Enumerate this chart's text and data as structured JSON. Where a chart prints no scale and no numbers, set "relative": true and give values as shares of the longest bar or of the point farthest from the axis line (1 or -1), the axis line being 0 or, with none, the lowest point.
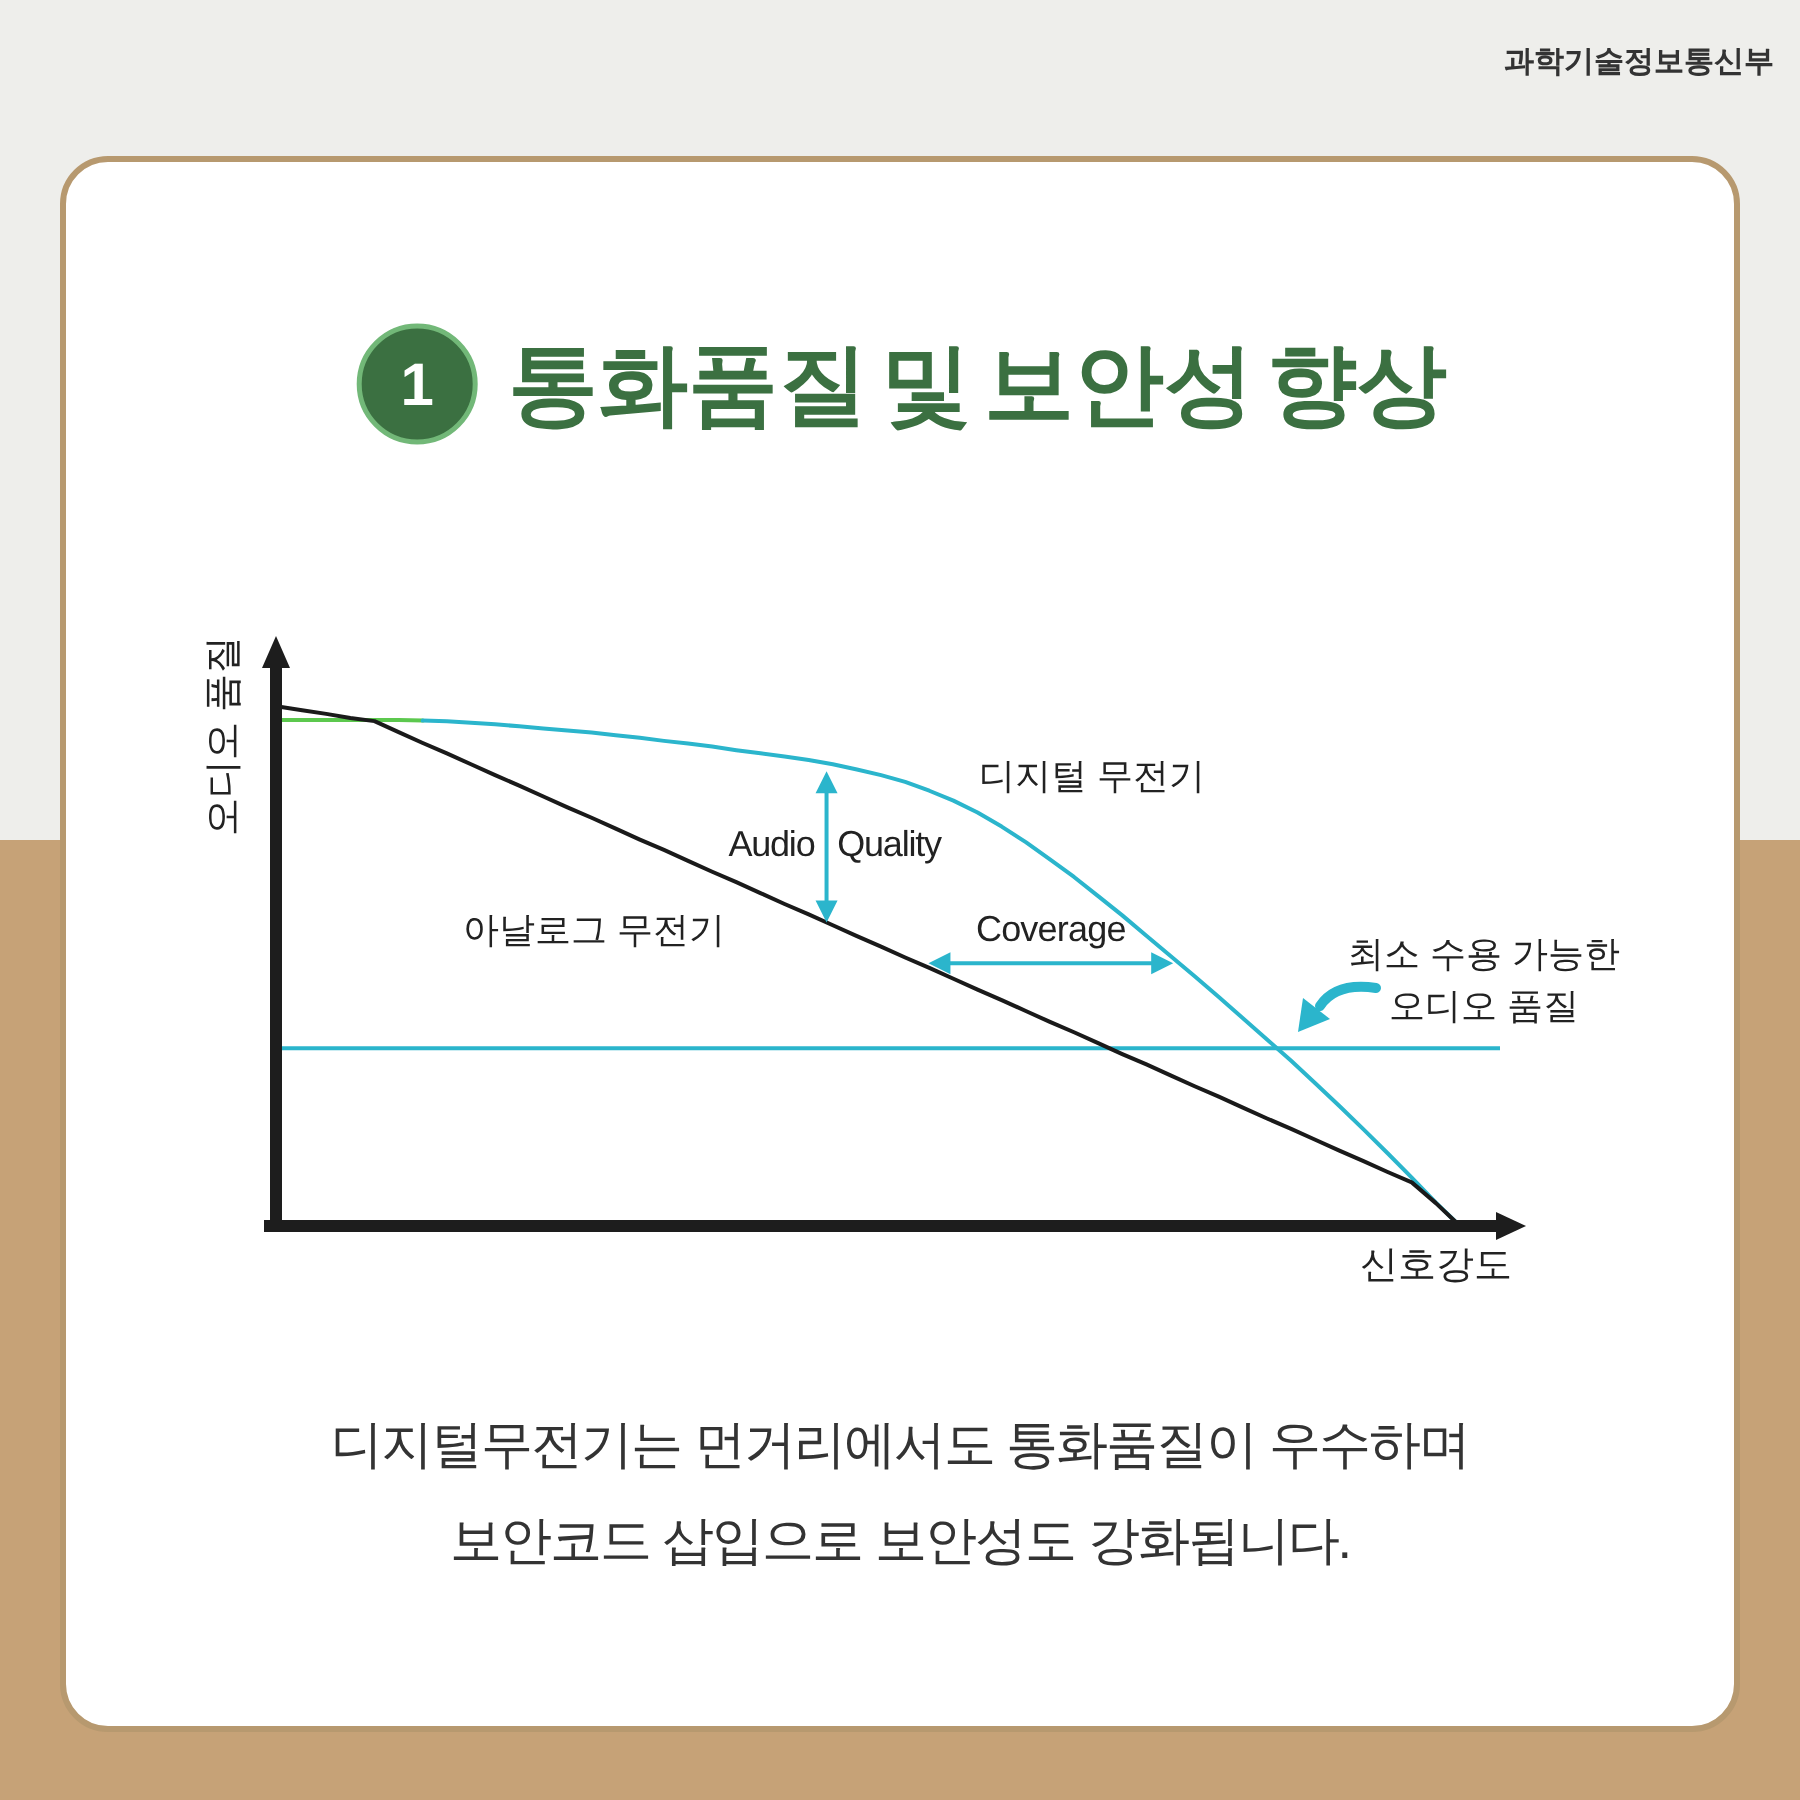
{
  "chart_data": {
    "type": "line",
    "relative": true,
    "title": "통화품질 및 보안성 향상",
    "xlabel": "신호강도",
    "ylabel": "오디오 품질",
    "categories": [
      null,
      null,
      null,
      null,
      null,
      null,
      null,
      null,
      null,
      null,
      null,
      null,
      null,
      null,
      null,
      null,
      null,
      null,
      null,
      null,
      null,
      null,
      null,
      null,
      null,
      null,
      null,
      null,
      null,
      null,
      null,
      null,
      null,
      null,
      null,
      null,
      null,
      null,
      null,
      null,
      null,
      null,
      null,
      null,
      null,
      null,
      null,
      null,
      null,
      null
    ],
    "series": [
      {
        "color": "#5cc84e",
        "values": [
          0.974,
          0.974,
          0.974,
          0.974,
          0.974,
          0.974,
          0.973,
          null,
          null,
          null,
          null,
          null,
          null,
          null,
          null,
          null,
          null,
          null,
          null,
          null,
          null,
          null,
          null,
          null,
          null,
          null,
          null,
          null,
          null,
          null,
          null,
          null,
          null,
          null,
          null,
          null,
          null,
          null,
          null,
          null,
          null,
          null,
          null,
          null,
          null,
          null,
          null,
          null,
          null,
          null
        ]
      },
      {
        "name": "디지털 무전기",
        "color": "#2bb5cc",
        "values": [
          null,
          null,
          null,
          null,
          null,
          null,
          0.973,
          0.972,
          0.969,
          0.966,
          0.962,
          0.958,
          0.954,
          0.95,
          0.945,
          0.94,
          0.934,
          0.929,
          0.923,
          0.916,
          0.91,
          0.904,
          0.897,
          0.889,
          0.879,
          0.868,
          0.855,
          0.838,
          0.819,
          0.796,
          0.769,
          0.739,
          0.706,
          0.672,
          0.635,
          0.598,
          0.559,
          0.52,
          0.481,
          0.441,
          0.4,
          0.359,
          0.318,
          0.275,
          0.231,
          0.186,
          0.14,
          0.093,
          0.045,
          0
        ]
      },
      {
        "name": "아날로그 무전기",
        "color": "#1a1a1a",
        "values": [
          1,
          0.993,
          0.986,
          0.978,
          0.972,
          0.951,
          0.93,
          0.91,
          0.889,
          0.868,
          0.848,
          0.827,
          0.806,
          0.786,
          0.765,
          0.744,
          0.724,
          0.703,
          0.682,
          0.662,
          0.641,
          0.62,
          0.6,
          0.579,
          0.558,
          0.538,
          0.517,
          0.497,
          0.476,
          0.455,
          0.435,
          0.414,
          0.393,
          0.373,
          0.352,
          0.331,
          0.311,
          0.29,
          0.269,
          0.249,
          0.228,
          0.207,
          0.187,
          0.166,
          0.145,
          0.125,
          0.104,
          0.084,
          0.044,
          0
        ]
      }
    ],
    "ref_lines": [
      {
        "axis": "y",
        "value": 0.342,
        "label": "최소 수용 가능한\n오디오 품질",
        "color": "#2bb5cc"
      }
    ],
    "annotations": [
      "1",
      "Audio Quality",
      "Coverage",
      "과학기술정보통신부",
      "디지털무전기는 먼거리에서도 통화품질이 우수하며\n보안코드 삽입으로 보안성도 강화됩니다."
    ]
  }
}
